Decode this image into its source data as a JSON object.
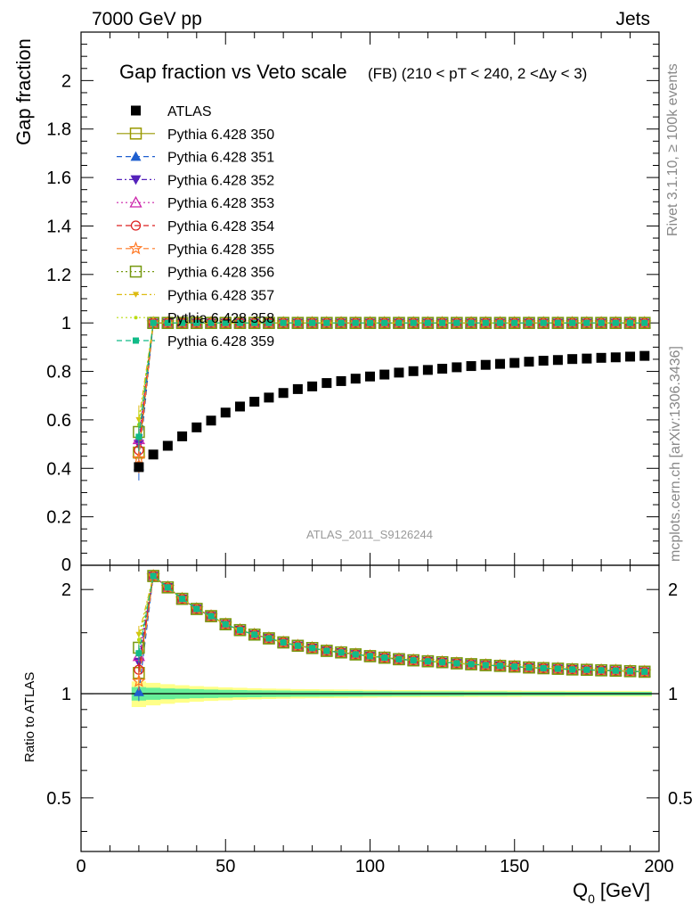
{
  "header": {
    "left": "7000 GeV pp",
    "right": "Jets"
  },
  "side_labels": {
    "rivet": "Rivet 3.1.10, ≥ 100k events",
    "mcplots": "mcplots.cern.ch [arXiv:1306.3436]"
  },
  "colors": {
    "atlas": "#000000",
    "band_inner": "#66ee99",
    "band_outer": "#ffff88"
  },
  "chart_data": {
    "type": "scatter",
    "title": "Gap fraction vs Veto scale",
    "subtitle": "(FB) (210 < pT < 240, 2 <Δy < 3)",
    "watermark": "ATLAS_2011_S9126244",
    "xlabel": "Q",
    "xlabel_sub": "0",
    "xlabel_unit": "[GeV]",
    "ylabel": "Gap fraction",
    "ratio_ylabel": "Ratio to ATLAS",
    "xlim": [
      0,
      200
    ],
    "ylim": [
      0,
      2.2
    ],
    "ratio_ylim": [
      0.35,
      2.35
    ],
    "x_ticks": [
      "0",
      "50",
      "100",
      "150",
      "200"
    ],
    "y_ticks": [
      "0.2",
      "0.4",
      "0.6",
      "0.8",
      "1",
      "1.2",
      "1.4",
      "1.6",
      "1.8",
      "2"
    ],
    "ratio_ticks": [
      "0.5",
      "1",
      "2"
    ],
    "x": [
      20,
      25,
      30,
      35,
      40,
      45,
      50,
      55,
      60,
      65,
      70,
      75,
      80,
      85,
      90,
      95,
      100,
      105,
      110,
      115,
      120,
      125,
      130,
      135,
      140,
      145,
      150,
      155,
      160,
      165,
      170,
      175,
      180,
      185,
      190,
      195
    ],
    "atlas": [
      0.405,
      0.457,
      0.493,
      0.532,
      0.569,
      0.597,
      0.63,
      0.655,
      0.675,
      0.692,
      0.711,
      0.727,
      0.738,
      0.752,
      0.76,
      0.77,
      0.779,
      0.787,
      0.795,
      0.801,
      0.806,
      0.811,
      0.817,
      0.822,
      0.827,
      0.831,
      0.835,
      0.84,
      0.844,
      0.847,
      0.851,
      0.853,
      0.856,
      0.858,
      0.861,
      0.864
    ],
    "band_inner": [
      0.045,
      0.04,
      0.036,
      0.033,
      0.03,
      0.028,
      0.026,
      0.024,
      0.023,
      0.022,
      0.021,
      0.02,
      0.02,
      0.019,
      0.018,
      0.018,
      0.017,
      0.017,
      0.016,
      0.016,
      0.015,
      0.015,
      0.015,
      0.014,
      0.014,
      0.014,
      0.013,
      0.013,
      0.013,
      0.013,
      0.012,
      0.012,
      0.012,
      0.012,
      0.012,
      0.012
    ],
    "band_outer": [
      0.085,
      0.075,
      0.065,
      0.058,
      0.052,
      0.047,
      0.043,
      0.04,
      0.037,
      0.035,
      0.033,
      0.031,
      0.03,
      0.029,
      0.028,
      0.027,
      0.026,
      0.025,
      0.024,
      0.024,
      0.023,
      0.023,
      0.022,
      0.022,
      0.021,
      0.021,
      0.021,
      0.02,
      0.02,
      0.02,
      0.02,
      0.019,
      0.019,
      0.019,
      0.019,
      0.019
    ],
    "mc_plateau": 1.0,
    "series": [
      {
        "name": "ATLAS",
        "color": "#000000",
        "marker": "filled-square",
        "line": "none",
        "first": 0.405
      },
      {
        "name": "Pythia 6.428 350",
        "color": "#999900",
        "marker": "open-square",
        "line": "solid",
        "first": 0.465
      },
      {
        "name": "Pythia 6.428 351",
        "color": "#1f5fcf",
        "marker": "filled-triangle-up",
        "line": "dashed",
        "first": 0.41
      },
      {
        "name": "Pythia 6.428 352",
        "color": "#5522bb",
        "marker": "filled-triangle-down",
        "line": "dashdot",
        "first": 0.5
      },
      {
        "name": "Pythia 6.428 353",
        "color": "#cc22aa",
        "marker": "open-triangle-up",
        "line": "dotted",
        "first": 0.52
      },
      {
        "name": "Pythia 6.428 354",
        "color": "#dd2222",
        "marker": "open-circle",
        "line": "dashed",
        "first": 0.475
      },
      {
        "name": "Pythia 6.428 355",
        "color": "#ff7722",
        "marker": "open-star",
        "line": "dashed",
        "first": 0.44
      },
      {
        "name": "Pythia 6.428 356",
        "color": "#779911",
        "marker": "open-square",
        "line": "dotted",
        "first": 0.55
      },
      {
        "name": "Pythia 6.428 357",
        "color": "#ddbb11",
        "marker": "filled-triangle-down-small",
        "line": "dashdot",
        "first": 0.6
      },
      {
        "name": "Pythia 6.428 358",
        "color": "#bbdd11",
        "marker": "dot",
        "line": "dotted",
        "first": 0.58
      },
      {
        "name": "Pythia 6.428 359",
        "color": "#11bb88",
        "marker": "filled-square-small",
        "line": "dashed",
        "first": 0.53
      }
    ]
  }
}
